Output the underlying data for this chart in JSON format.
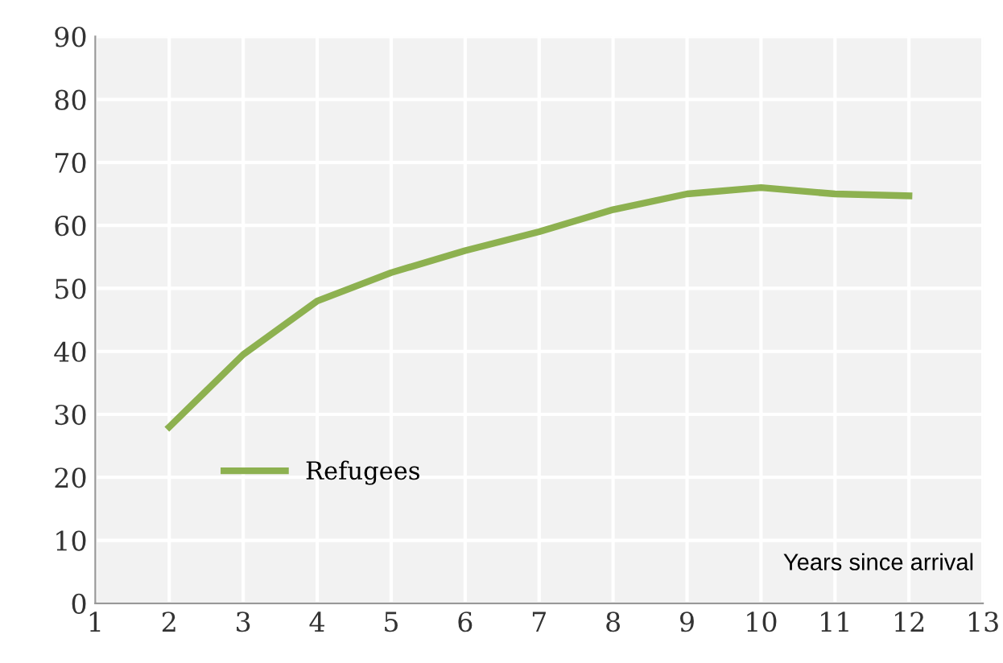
{
  "chart_data": {
    "type": "line",
    "xlabel": "Years since arrival",
    "x": [
      2,
      3,
      4,
      5,
      6,
      7,
      8,
      9,
      10,
      11,
      12
    ],
    "series": [
      {
        "name": "Refugees",
        "color": "#8db150",
        "values": [
          28,
          39.5,
          48,
          52.5,
          56,
          59,
          62.5,
          65,
          66,
          65,
          64.7
        ]
      }
    ],
    "xlim": [
      1,
      13
    ],
    "xticks": [
      1,
      2,
      3,
      4,
      5,
      6,
      7,
      8,
      9,
      10,
      11,
      12,
      13
    ],
    "ylim": [
      0,
      90
    ],
    "yticks": [
      0,
      10,
      20,
      30,
      40,
      50,
      60,
      70,
      80,
      90
    ],
    "grid": true,
    "legend": "bottom left",
    "marker": "none",
    "line_style": "solid"
  }
}
